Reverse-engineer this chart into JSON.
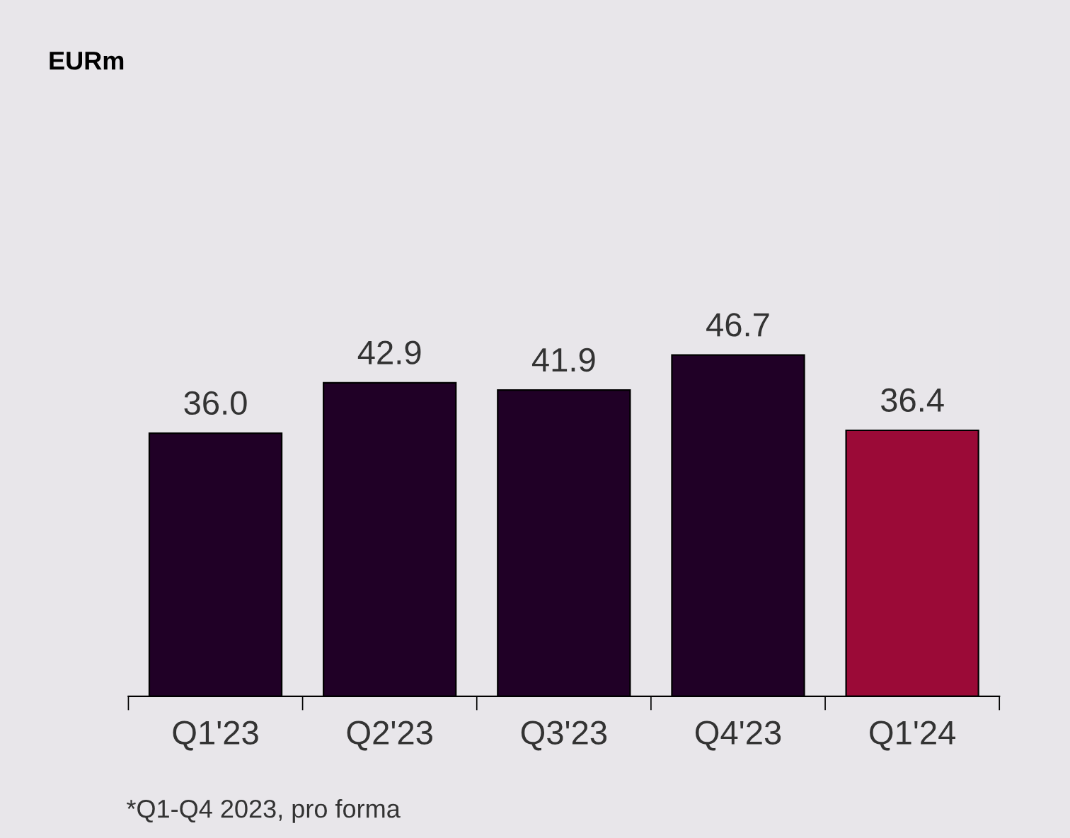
{
  "chart_data": {
    "type": "bar",
    "title": "EURm",
    "categories": [
      "Q1'23",
      "Q2'23",
      "Q3'23",
      "Q4'23",
      "Q1'24"
    ],
    "values": [
      36.0,
      42.9,
      41.9,
      46.7,
      36.4
    ],
    "colors": [
      "#200026",
      "#200026",
      "#200026",
      "#200026",
      "#9b0a37"
    ],
    "value_labels": [
      "36.0",
      "42.9",
      "41.9",
      "46.7",
      "36.4"
    ],
    "tick_labels": "x",
    "grid": false,
    "legend": false,
    "annotations": [
      "*Q1-Q4 2023, pro forma"
    ]
  }
}
